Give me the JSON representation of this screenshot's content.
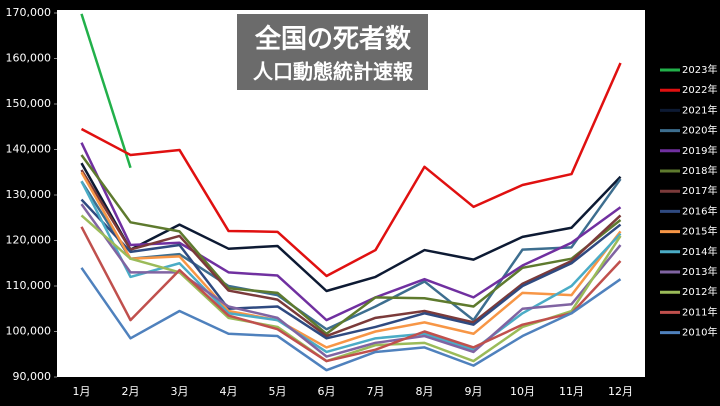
{
  "chart_data": {
    "type": "line",
    "title": "全国の死者数",
    "subtitle": "人口動態統計速報",
    "categories": [
      "1月",
      "2月",
      "3月",
      "4月",
      "5月",
      "6月",
      "7月",
      "8月",
      "9月",
      "10月",
      "11月",
      "12月"
    ],
    "ylim": [
      90000,
      170000
    ],
    "yticks": [
      {
        "value": 90000,
        "label": "90,000"
      },
      {
        "value": 100000,
        "label": "100,000"
      },
      {
        "value": 110000,
        "label": "110,000"
      },
      {
        "value": 120000,
        "label": "120,000"
      },
      {
        "value": 130000,
        "label": "130,000"
      },
      {
        "value": 140000,
        "label": "140,000"
      },
      {
        "value": 150000,
        "label": "150,000"
      },
      {
        "value": 160000,
        "label": "160,000"
      },
      {
        "value": 170000,
        "label": "170,000"
      }
    ],
    "legend": "right",
    "series": [
      {
        "name": "2023年",
        "color": "#22b04a",
        "values": [
          169800,
          136000,
          null,
          null,
          null,
          null,
          null,
          null,
          null,
          null,
          null,
          null
        ]
      },
      {
        "name": "2022年",
        "color": "#e01010",
        "values": [
          144500,
          138800,
          139900,
          122100,
          121900,
          112200,
          117900,
          136200,
          127400,
          132200,
          134600,
          159000
        ]
      },
      {
        "name": "2021年",
        "color": "#0d1a33",
        "values": [
          137000,
          118000,
          123500,
          118200,
          118800,
          108900,
          112000,
          117900,
          115800,
          120800,
          122800,
          134000
        ]
      },
      {
        "name": "2020年",
        "color": "#3d6e8f",
        "values": [
          133000,
          116000,
          117000,
          110000,
          108000,
          100500,
          105500,
          111000,
          102500,
          118000,
          118500,
          133500
        ]
      },
      {
        "name": "2019年",
        "color": "#7030a0",
        "values": [
          141500,
          119000,
          119500,
          113000,
          112300,
          102500,
          107500,
          111500,
          107500,
          114500,
          119500,
          127300
        ]
      },
      {
        "name": "2018年",
        "color": "#5e7a2e",
        "values": [
          138800,
          124000,
          122000,
          109500,
          108500,
          99500,
          107500,
          107300,
          105500,
          114000,
          116000,
          124500
        ]
      },
      {
        "name": "2017年",
        "color": "#7b3a3a",
        "values": [
          135500,
          118000,
          121000,
          109000,
          107000,
          99000,
          103000,
          104500,
          102000,
          110500,
          115500,
          125500
        ]
      },
      {
        "name": "2016年",
        "color": "#2f4a80",
        "values": [
          129000,
          117500,
          119000,
          105000,
          105500,
          98500,
          101000,
          104000,
          101500,
          110000,
          115000,
          123500
        ]
      },
      {
        "name": "2015年",
        "color": "#f79646",
        "values": [
          135000,
          116000,
          116500,
          104500,
          102500,
          96500,
          100000,
          102000,
          99500,
          108500,
          108000,
          122000
        ]
      },
      {
        "name": "2014年",
        "color": "#4bacc6",
        "values": [
          133000,
          112000,
          115000,
          104000,
          102500,
          95500,
          98500,
          99500,
          96000,
          104000,
          110000,
          121500
        ]
      },
      {
        "name": "2013年",
        "color": "#8064a2",
        "values": [
          128000,
          113000,
          113000,
          105500,
          103000,
          94500,
          97500,
          99000,
          95500,
          105000,
          106000,
          119000
        ]
      },
      {
        "name": "2012年",
        "color": "#9bbb59",
        "values": [
          125500,
          116000,
          113000,
          103000,
          101000,
          93500,
          97000,
          97500,
          93500,
          101000,
          104500,
          121000
        ]
      },
      {
        "name": "2011年",
        "color": "#c0504d",
        "values": [
          123000,
          102500,
          113500,
          103500,
          100500,
          93500,
          96000,
          100000,
          96500,
          101500,
          104000,
          115500
        ]
      },
      {
        "name": "2010年",
        "color": "#4f81bd",
        "values": [
          114000,
          98500,
          104500,
          99500,
          99000,
          91500,
          95500,
          96500,
          92500,
          99000,
          104000,
          111500
        ]
      }
    ]
  }
}
